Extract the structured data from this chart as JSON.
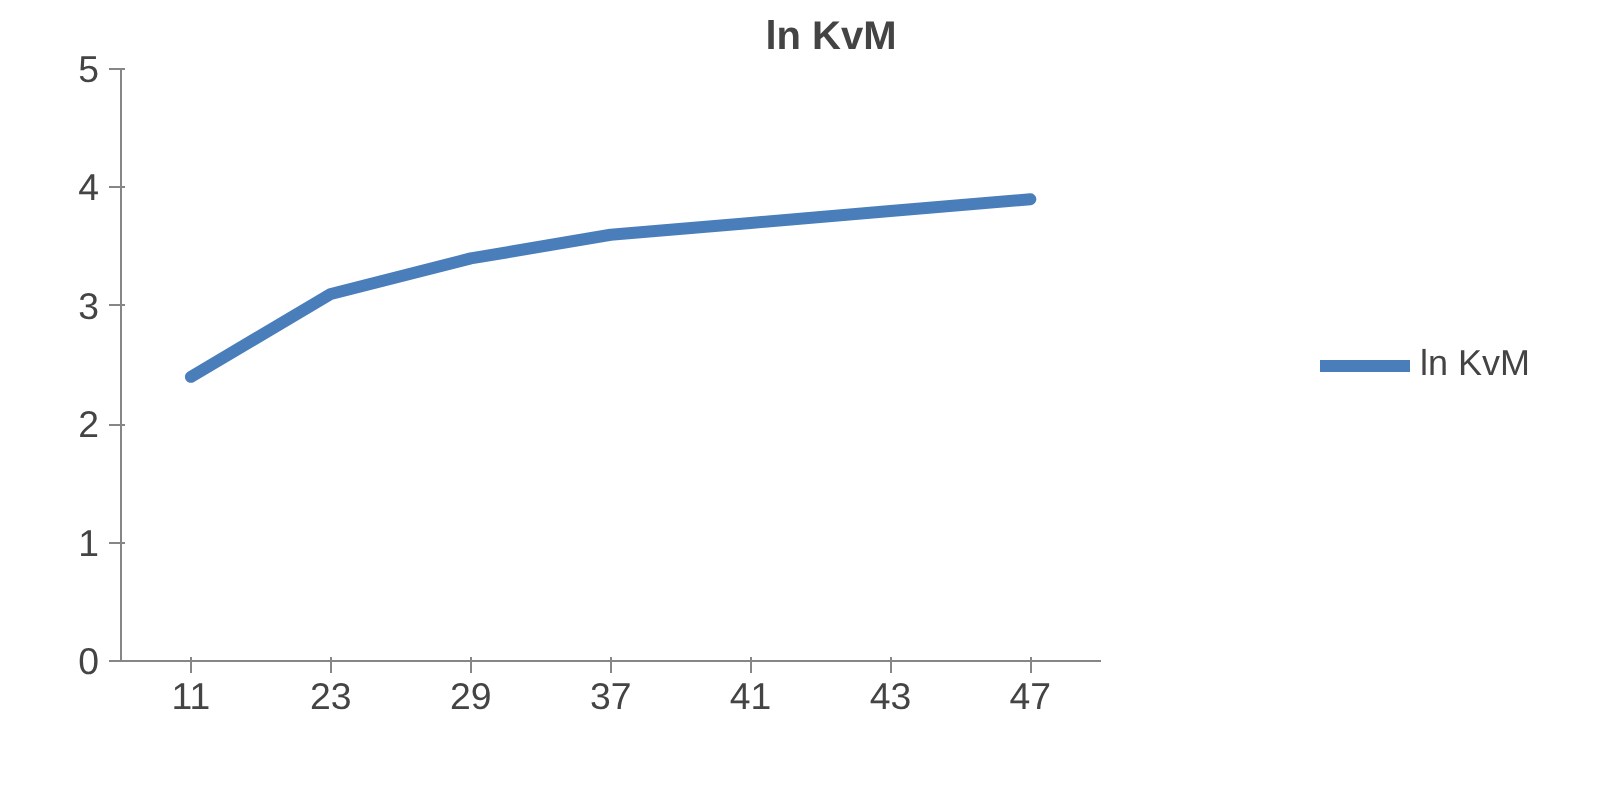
{
  "chart_data": {
    "type": "line",
    "title": "ln KvM",
    "categories": [
      "11",
      "23",
      "29",
      "37",
      "41",
      "43",
      "47"
    ],
    "series": [
      {
        "name": "ln KvM",
        "color": "#4a7ebb",
        "values": [
          2.4,
          3.1,
          3.4,
          3.6,
          3.7,
          3.8,
          3.9
        ]
      }
    ],
    "ylim": [
      0,
      5
    ],
    "yticks": [
      0,
      1,
      2,
      3,
      4,
      5
    ],
    "grid": false,
    "legend": "right",
    "marker": "none",
    "line_style": "solid"
  }
}
